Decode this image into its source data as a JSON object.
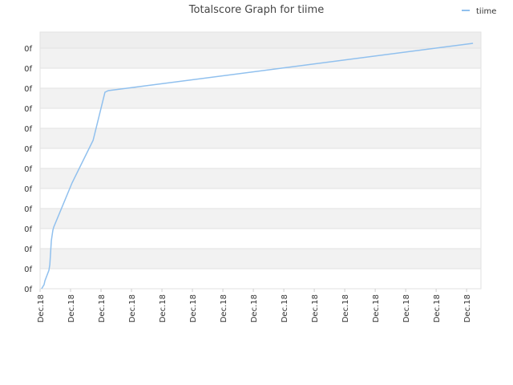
{
  "chart_data": {
    "type": "line",
    "title": "Totalscore Graph for tiime",
    "x": [
      0.05,
      0.13,
      0.16,
      0.24,
      0.29,
      0.32,
      0.37,
      0.42,
      0.45,
      1.05,
      1.74,
      2.13,
      2.24,
      14.21
    ],
    "series": [
      {
        "name": "tiime",
        "color": "#90c0ee",
        "values": [
          0,
          0.2,
          0.4,
          0.72,
          0.92,
          1.2,
          2.4,
          2.92,
          3.08,
          5.28,
          7.4,
          9.8,
          9.88,
          12.24
        ]
      }
    ],
    "xlim": [
      0,
      14.47
    ],
    "xticks": [
      {
        "value": 0,
        "label": "Dec.18"
      },
      {
        "value": 1,
        "label": "Dec.18"
      },
      {
        "value": 2,
        "label": "Dec.18"
      },
      {
        "value": 3,
        "label": "Dec.18"
      },
      {
        "value": 4,
        "label": "Dec.18"
      },
      {
        "value": 5,
        "label": "Dec.18"
      },
      {
        "value": 6,
        "label": "Dec.18"
      },
      {
        "value": 7,
        "label": "Dec.18"
      },
      {
        "value": 8,
        "label": "Dec.18"
      },
      {
        "value": 9,
        "label": "Dec.18"
      },
      {
        "value": 10,
        "label": "Dec.18"
      },
      {
        "value": 11,
        "label": "Dec.18"
      },
      {
        "value": 12,
        "label": "Dec.18"
      },
      {
        "value": 13,
        "label": "Dec.18"
      },
      {
        "value": 14,
        "label": "Dec.18"
      }
    ],
    "ylim": [
      0,
      12.8
    ],
    "yticks": [
      {
        "value": 0,
        "label": "0f"
      },
      {
        "value": 1,
        "label": "0f"
      },
      {
        "value": 2,
        "label": "0f"
      },
      {
        "value": 3,
        "label": "0f"
      },
      {
        "value": 4,
        "label": "0f"
      },
      {
        "value": 5,
        "label": "0f"
      },
      {
        "value": 6,
        "label": "0f"
      },
      {
        "value": 7,
        "label": "0f"
      },
      {
        "value": 8,
        "label": "0f"
      },
      {
        "value": 9,
        "label": "0f"
      },
      {
        "value": 10,
        "label": "0f"
      },
      {
        "value": 11,
        "label": "0f"
      },
      {
        "value": 12,
        "label": "0f"
      }
    ],
    "grid": true,
    "legend": "top-right"
  }
}
